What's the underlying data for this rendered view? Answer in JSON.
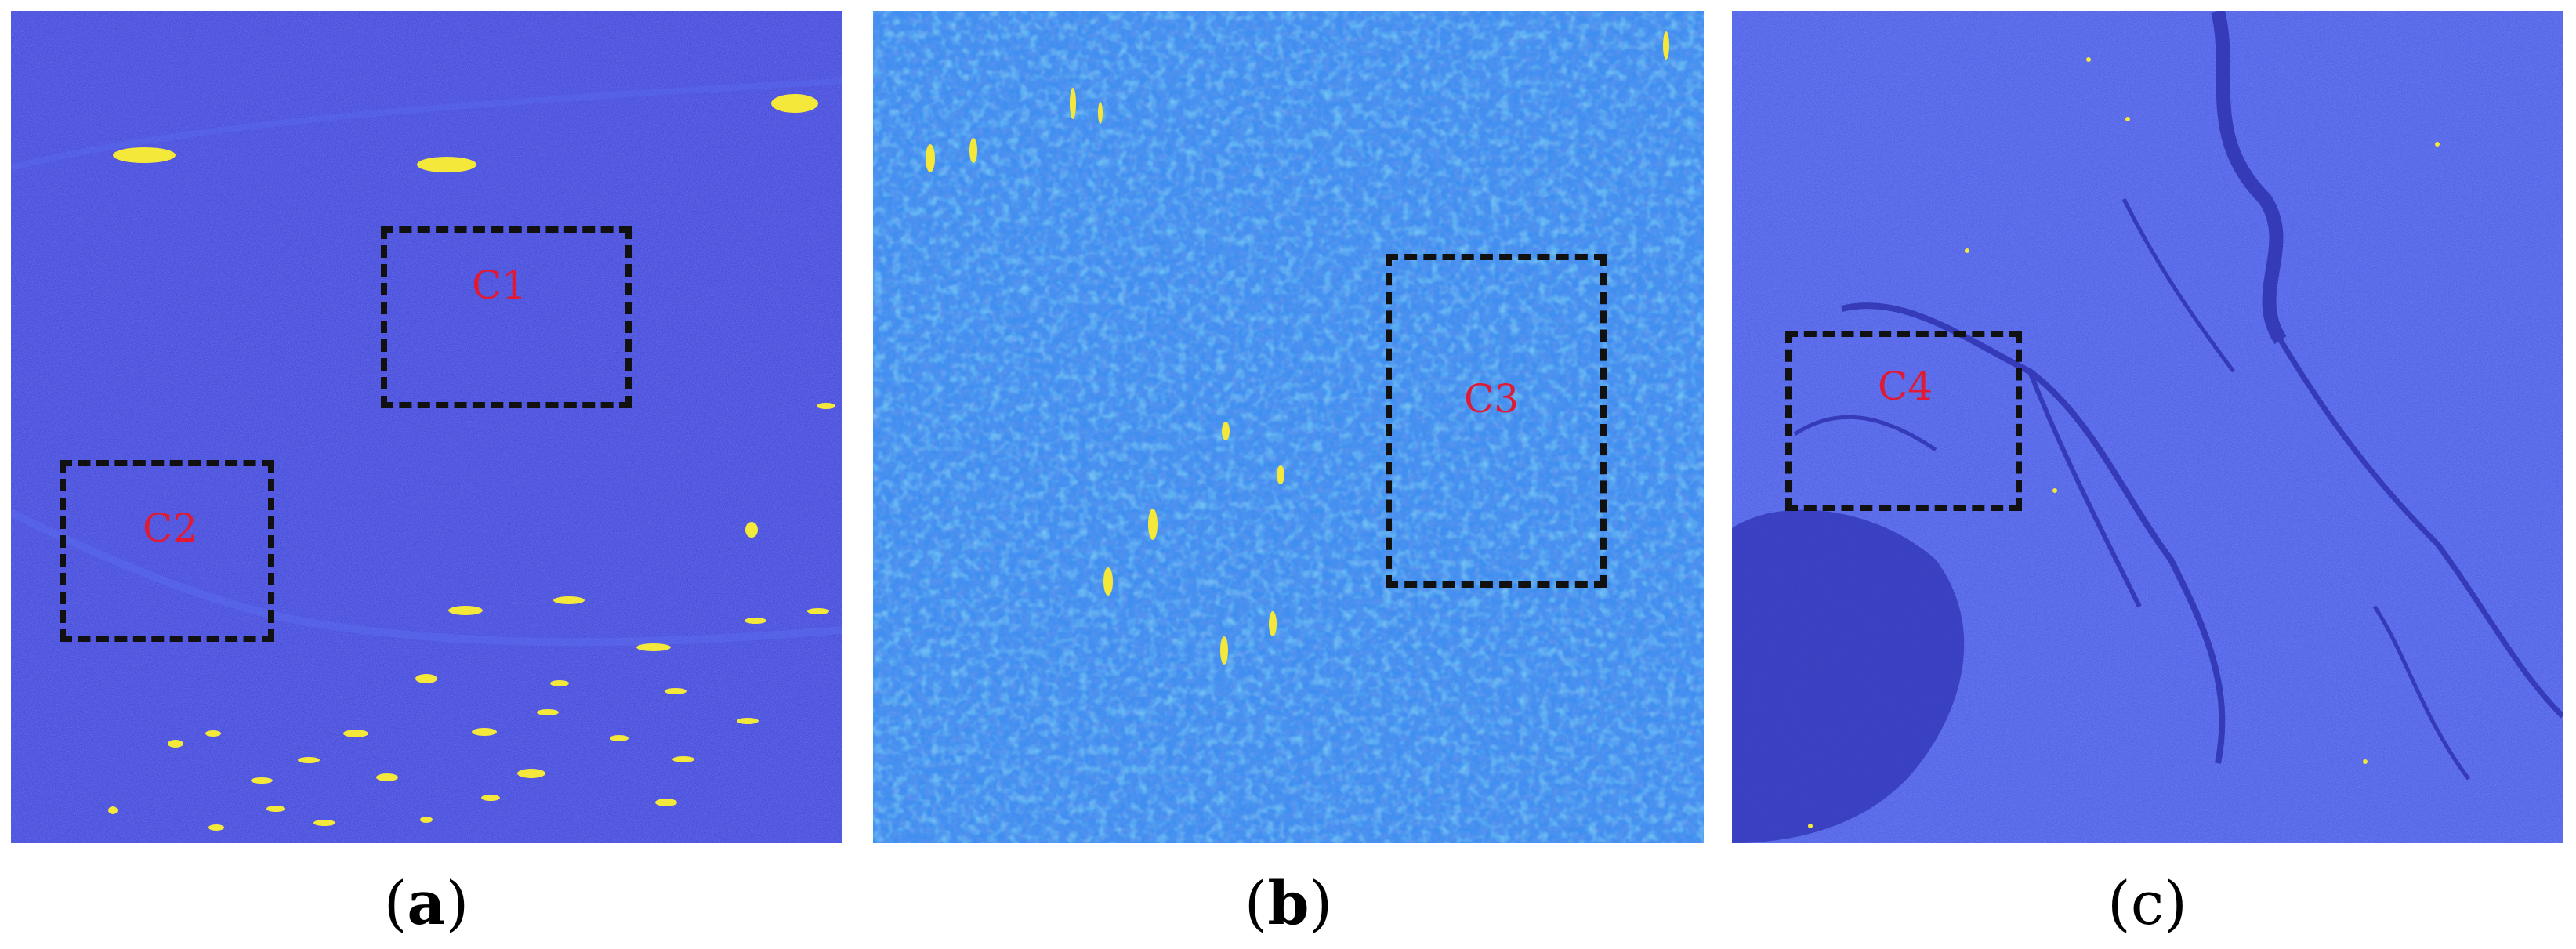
{
  "panels": [
    {
      "caption_open": "(",
      "caption_letter": "a",
      "caption_close": ")",
      "regions": [
        {
          "label": "C1"
        },
        {
          "label": "C2"
        }
      ]
    },
    {
      "caption_open": "(",
      "caption_letter": "b",
      "caption_close": ")",
      "regions": [
        {
          "label": "C3"
        }
      ]
    },
    {
      "caption_open": "(",
      "caption_letter": "c",
      "caption_close": ")",
      "regions": [
        {
          "label": "C4"
        }
      ]
    }
  ],
  "colors": {
    "panel_a_background": "#3b3fd6",
    "panel_b_background": "#3f8ff0",
    "panel_c_background": "#4a5ae6",
    "target_highlight": "#f4e83a",
    "box_border": "#111111",
    "region_label": "#e01a34"
  }
}
